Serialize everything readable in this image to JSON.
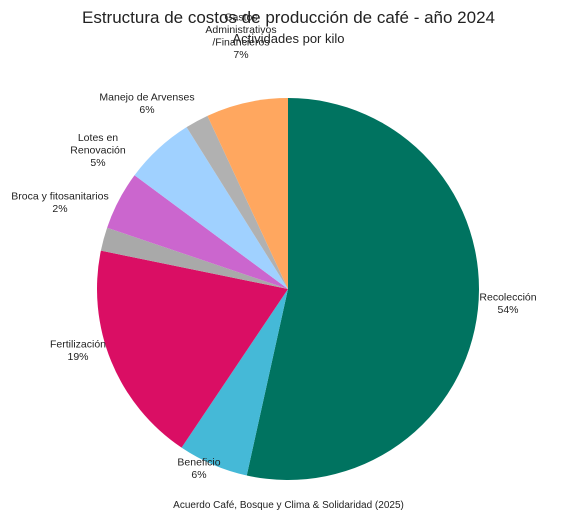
{
  "chart_data": {
    "type": "pie",
    "title": "Estructura de costos de producción de café - año 2024",
    "subtitle": "Actividades por kilo",
    "source": "Acuerdo Café, Bosque y Clima & Solidaridad (2025)",
    "slices": [
      {
        "label": "Recolección",
        "value": 54,
        "value_label": "54%",
        "color": "#007360"
      },
      {
        "label": "Beneficio",
        "value": 6,
        "value_label": "6%",
        "color": "#45B9D7"
      },
      {
        "label": "Fertilización",
        "value": 19,
        "value_label": "19%",
        "color": "#DA0E64"
      },
      {
        "label": "",
        "value": 2,
        "value_label": "",
        "color": "#A9A9A9"
      },
      {
        "label": "Lotes en Renovación",
        "value": 5,
        "value_label": "5%",
        "color": "#CB66CE"
      },
      {
        "label": "Manejo de Arvenses",
        "value": 6,
        "value_label": "6%",
        "color": "#A0D1FF"
      },
      {
        "label": "Broca y fitosanitarios",
        "value": 2,
        "value_label": "2%",
        "color": "#B1B1B1"
      },
      {
        "label": "Gastos Administrativos /Financieros",
        "value": 7,
        "value_label": "7%",
        "color": "#FFA75F"
      }
    ]
  }
}
